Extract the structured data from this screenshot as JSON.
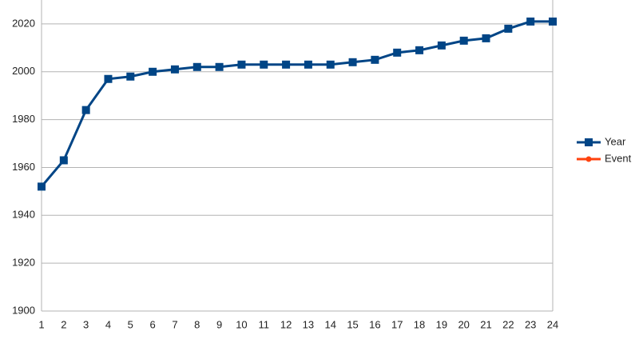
{
  "chart_data": {
    "type": "line",
    "categories": [
      1,
      2,
      3,
      4,
      5,
      6,
      7,
      8,
      9,
      10,
      11,
      12,
      13,
      14,
      15,
      16,
      17,
      18,
      19,
      20,
      21,
      22,
      23,
      24
    ],
    "series": [
      {
        "name": "Year",
        "color": "#004586",
        "values": [
          1952,
          1963,
          1984,
          1997,
          1998,
          2000,
          2001,
          2002,
          2002,
          2003,
          2003,
          2003,
          2003,
          2003,
          2004,
          2005,
          2008,
          2009,
          2011,
          2013,
          2014,
          2018,
          2021,
          2021
        ]
      },
      {
        "name": "Event",
        "color": "#ff420e",
        "values": [
          null,
          null,
          null,
          null,
          null,
          null,
          null,
          null,
          null,
          null,
          null,
          null,
          null,
          null,
          null,
          null,
          null,
          null,
          null,
          null,
          null,
          null,
          null,
          null
        ]
      }
    ],
    "ylim": [
      1900,
      2030
    ],
    "yticks": [
      1900,
      1920,
      1940,
      1960,
      1980,
      2000,
      2020
    ],
    "grid": true,
    "legend": "right"
  }
}
